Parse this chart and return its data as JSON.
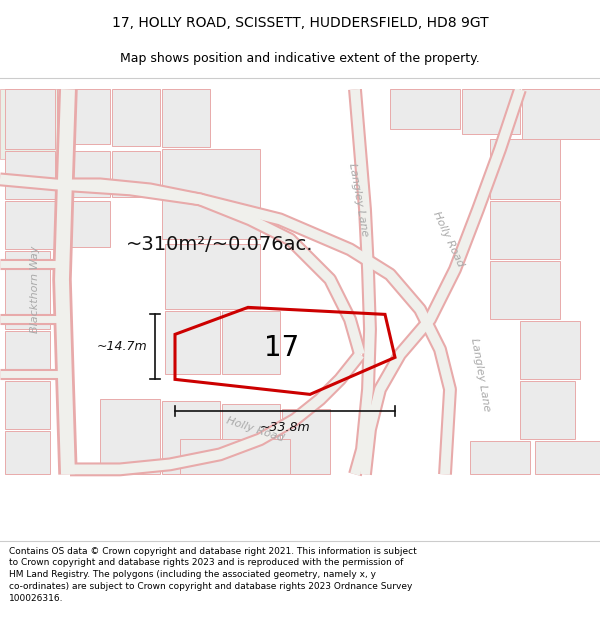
{
  "title_line1": "17, HOLLY ROAD, SCISSETT, HUDDERSFIELD, HD8 9GT",
  "title_line2": "Map shows position and indicative extent of the property.",
  "footer_text": "Contains OS data © Crown copyright and database right 2021. This information is subject to Crown copyright and database rights 2023 and is reproduced with the permission of HM Land Registry. The polygons (including the associated geometry, namely x, y co-ordinates) are subject to Crown copyright and database rights 2023 Ordnance Survey 100026316.",
  "area_text": "~310m²/~0.076ac.",
  "dimension_width": "~33.8m",
  "dimension_height": "~14.7m",
  "property_number": "17",
  "map_bg": "#f7f7f2",
  "parcel_edge": "#e8aaaa",
  "parcel_fill": "#ebebeb",
  "road_surface": "#f0f0ec",
  "road_edge": "#e8aaaa",
  "highlight_color": "#cc0000",
  "label_color": "#aaaaaa",
  "dim_color": "#111111",
  "title_fontsize": 10,
  "subtitle_fontsize": 9,
  "area_fontsize": 14,
  "dim_fontsize": 9,
  "label_fontsize": 8
}
